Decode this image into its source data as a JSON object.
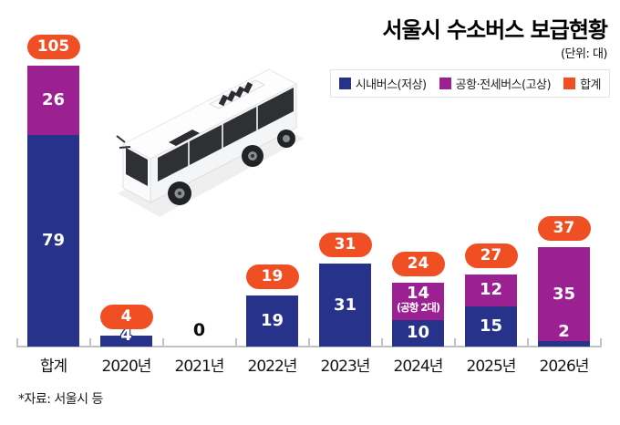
{
  "header": {
    "title": "서울시 수소버스 보급현황",
    "unit": "(단위: 대)"
  },
  "legend": {
    "items": [
      {
        "label": "시내버스(저상)",
        "color": "#27338a"
      },
      {
        "label": "공항·전세버스(고상)",
        "color": "#9b2092"
      },
      {
        "label": "합계",
        "color": "#f04f23"
      }
    ]
  },
  "icons": {
    "bus": "isometric-white-hydrogen-bus-illustration"
  },
  "footer": {
    "source": "*자료: 서울시 등"
  },
  "colors": {
    "navy": "#27338a",
    "purple": "#9b2092",
    "orange": "#f04f23",
    "axis": "#c2c2c2",
    "label_text": "#141414"
  },
  "chart_data": {
    "type": "bar",
    "stacked": true,
    "title": "서울시 수소버스 보급현황",
    "unit_label": "(단위: 대)",
    "categories": [
      "합계",
      "2020년",
      "2021년",
      "2022년",
      "2023년",
      "2024년",
      "2025년",
      "2026년"
    ],
    "series": [
      {
        "name": "시내버스(저상)",
        "color": "#27338a",
        "values": [
          79,
          4,
          0,
          19,
          31,
          10,
          15,
          2
        ]
      },
      {
        "name": "공항·전세버스(고상)",
        "color": "#9b2092",
        "values": [
          26,
          0,
          0,
          0,
          0,
          14,
          12,
          35
        ]
      }
    ],
    "totals": [
      105,
      4,
      0,
      19,
      31,
      24,
      27,
      37
    ],
    "segment_notes": [
      "",
      "",
      "",
      "",
      "",
      "(공항 2대)",
      "",
      ""
    ],
    "zero_label": "0",
    "ylim": [
      0,
      115
    ],
    "grid": false,
    "legend_position": "top-right",
    "value_labels": "white-on-segment",
    "total_badge_style": "orange-pill"
  }
}
